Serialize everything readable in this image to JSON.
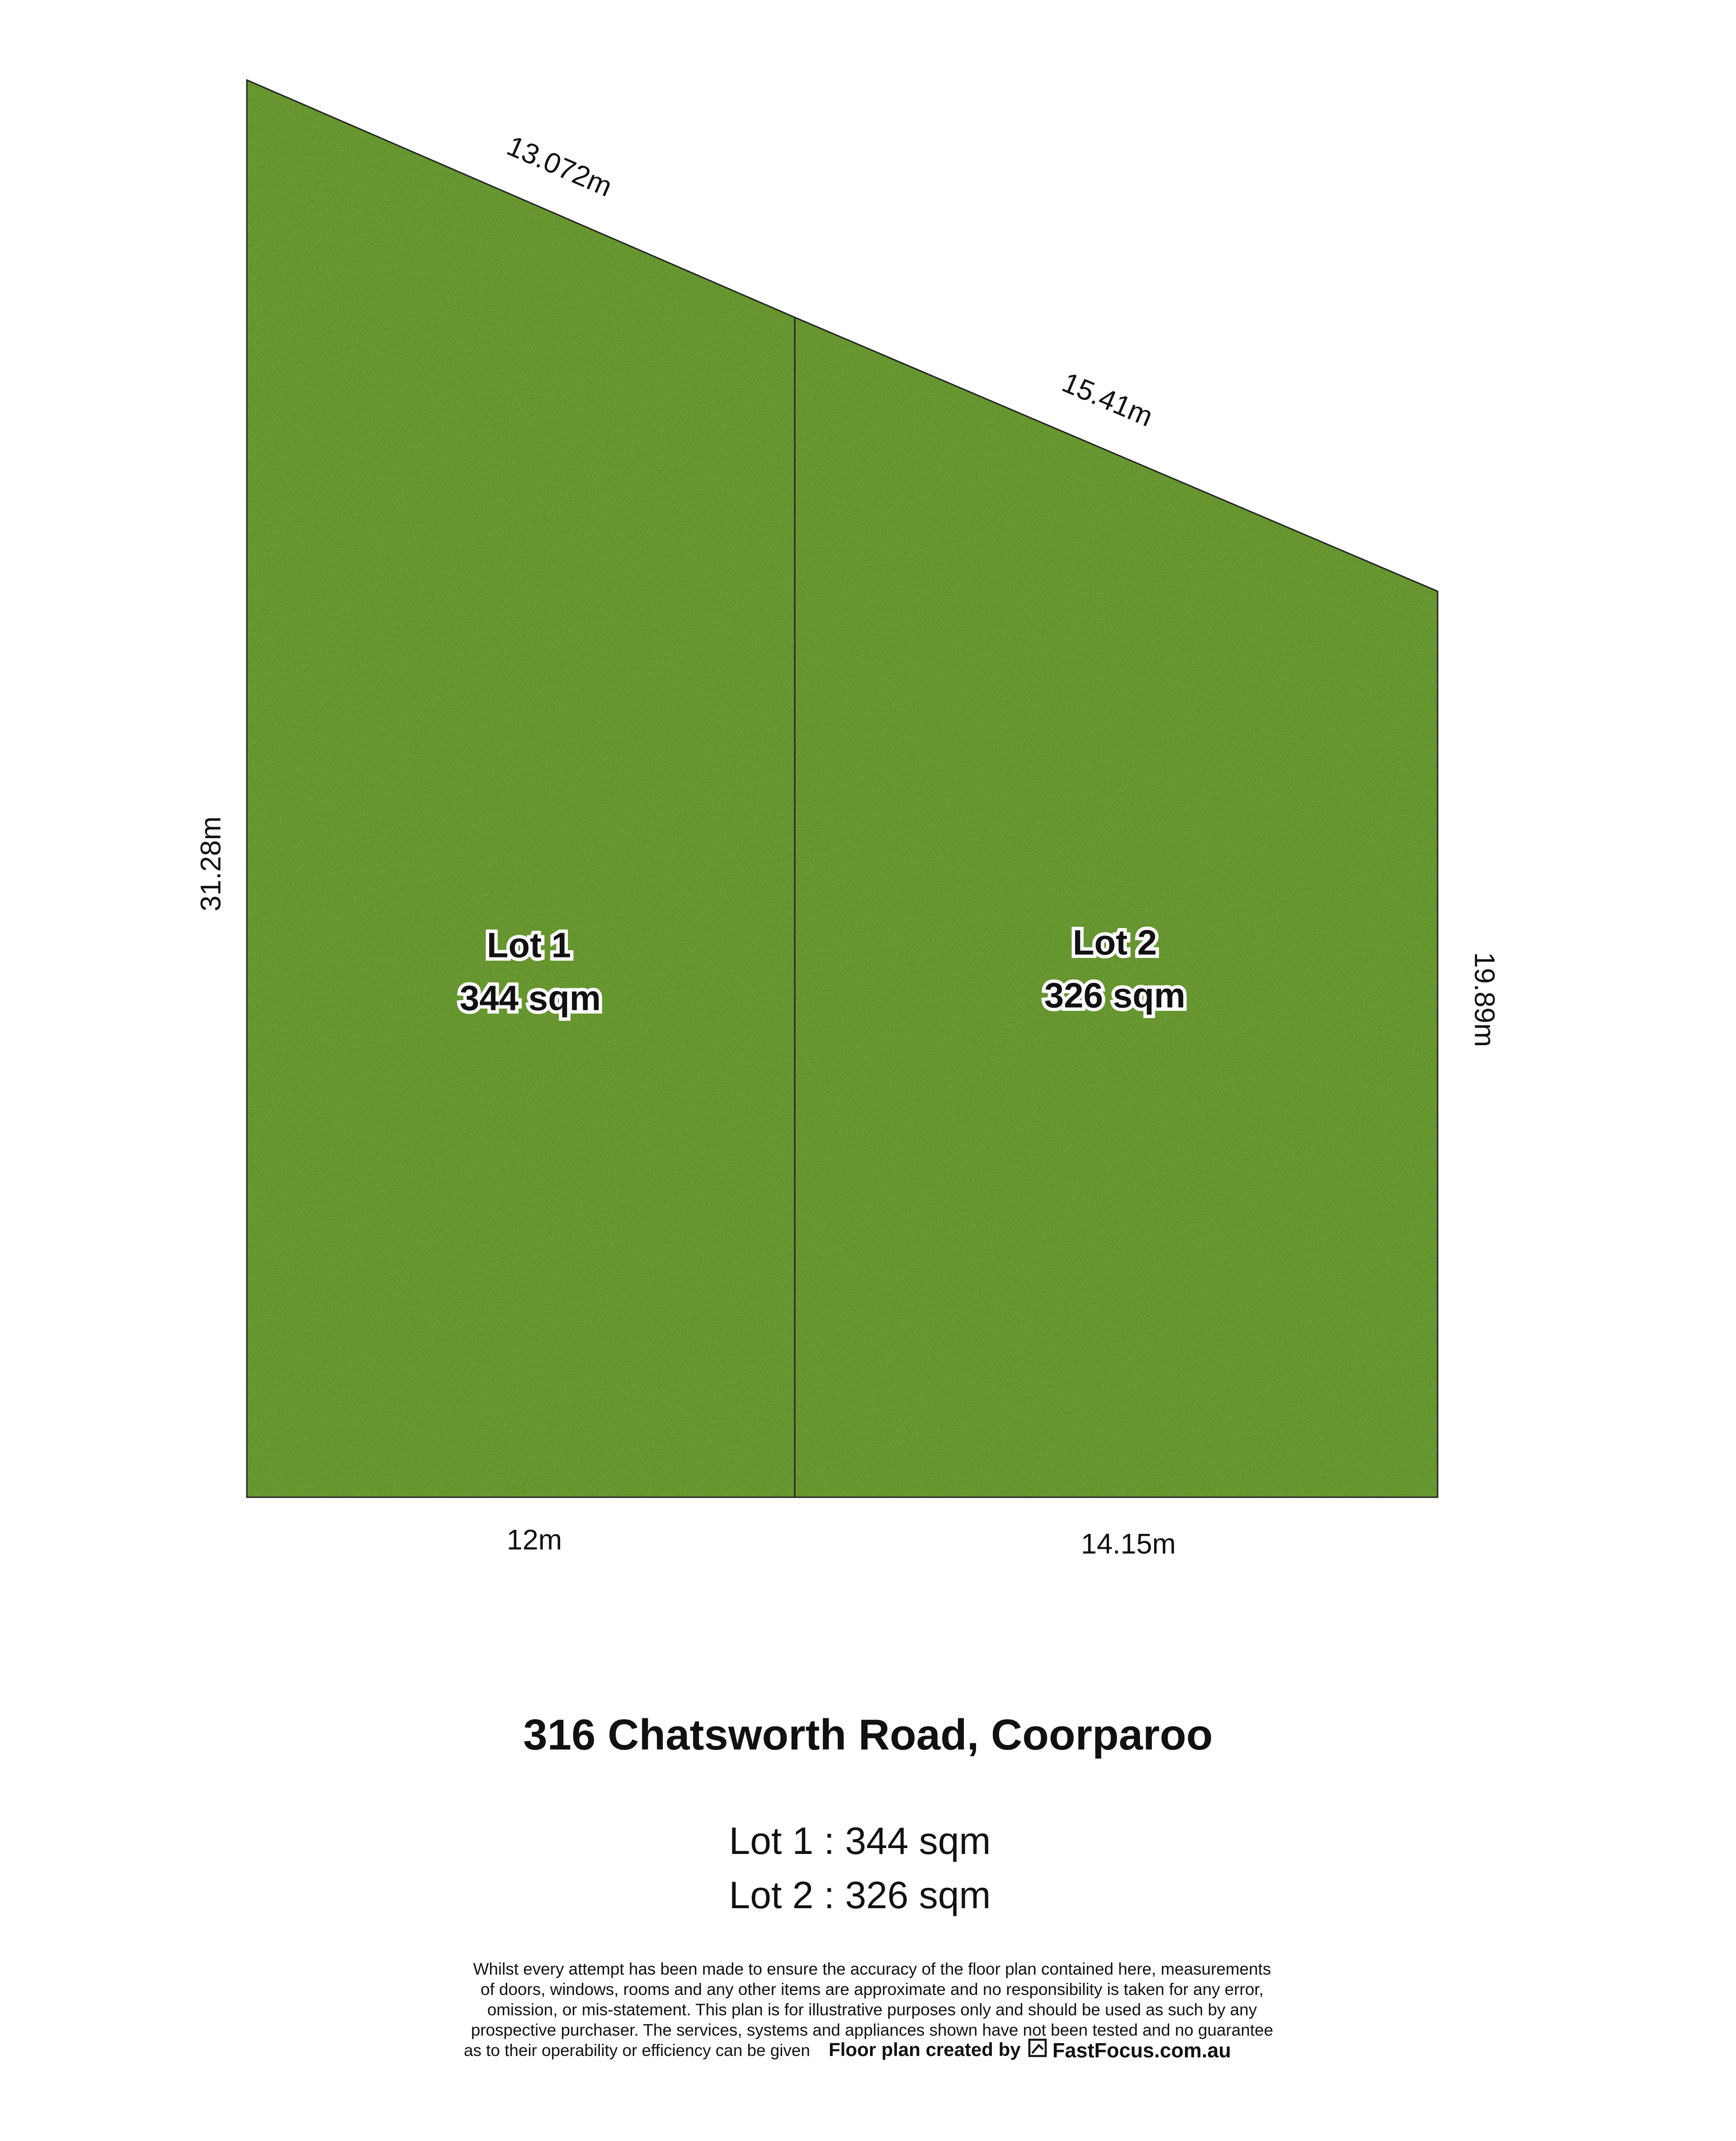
{
  "plan": {
    "dimensions": {
      "top_left": "13.072m",
      "top_right": "15.41m",
      "left": "31.28m",
      "right": "19.89m",
      "bottom_left": "12m",
      "bottom_right": "14.15m"
    },
    "lots": [
      {
        "name": "Lot 1",
        "area": "344 sqm"
      },
      {
        "name": "Lot 2",
        "area": "326 sqm"
      }
    ]
  },
  "title": "316 Chatsworth Road, Coorparoo",
  "summary": [
    "Lot 1 : 344 sqm",
    "Lot 2 : 326 sqm"
  ],
  "disclaimer": [
    "Whilst every attempt has been made to ensure the accuracy of the floor plan contained here, measurements",
    "of doors, windows, rooms and any other items are approximate and no responsibility is taken for any error,",
    "omission, or mis-statement. This plan is for illustrative purposes only and should be used as such by any",
    "prospective purchaser. The services, systems and appliances shown have not been tested and no guarantee",
    "as to their operability or efficiency can be given"
  ],
  "credit": {
    "text": "Floor plan created by",
    "brand": "FastFocus.com.au"
  }
}
